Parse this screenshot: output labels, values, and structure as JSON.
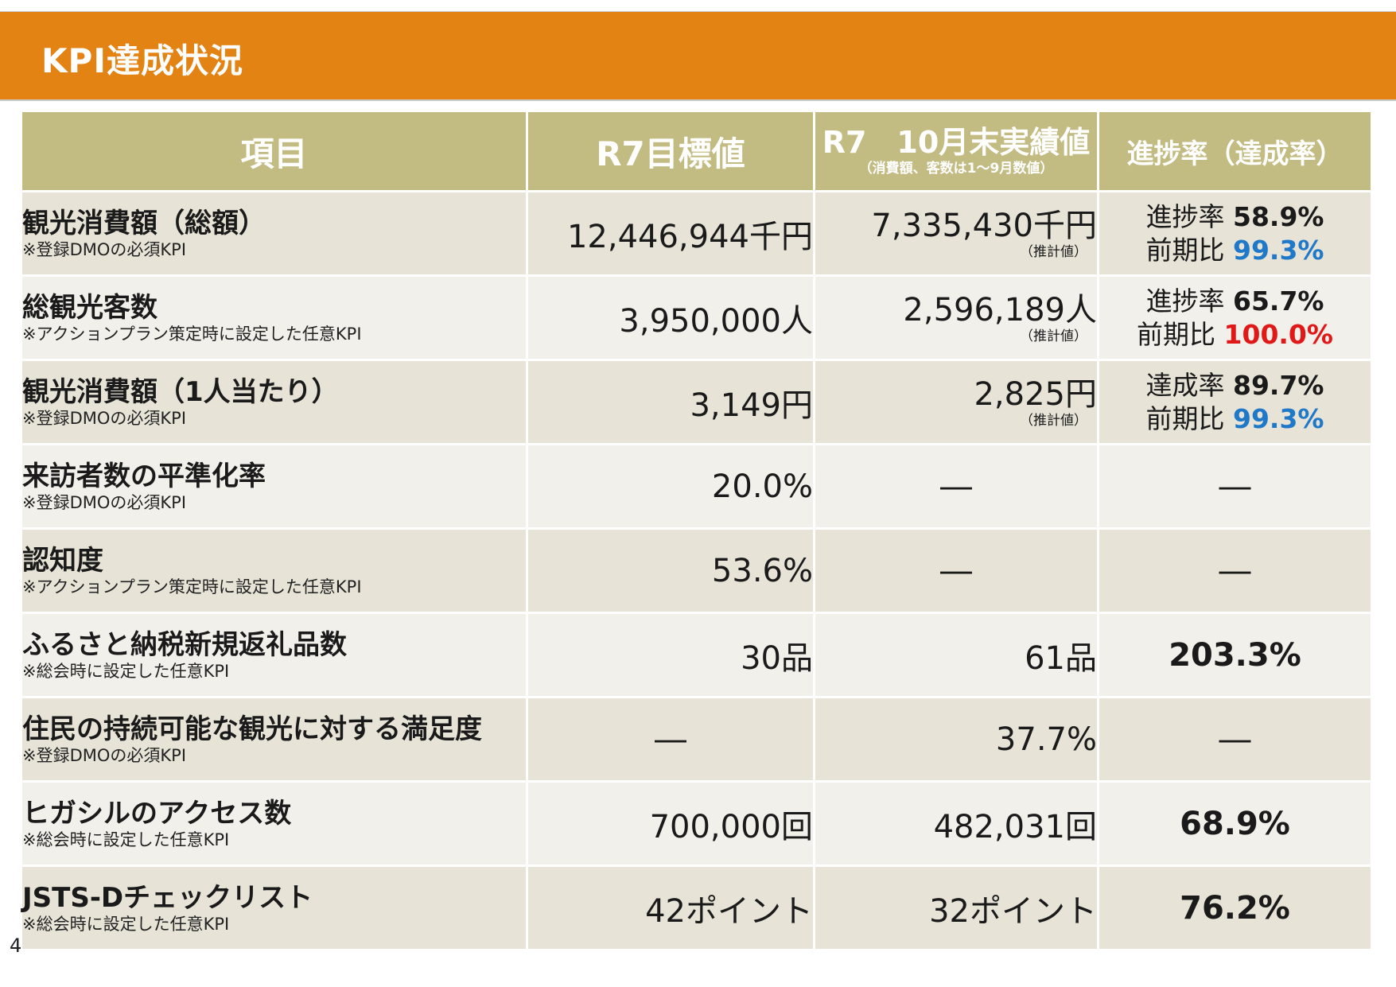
{
  "title": "KPI達成状況",
  "headers": {
    "item": "項目",
    "target": "R7目標値",
    "actual": "R7　10月末実績値",
    "actual_note": "（消費額、客数は1～9月数値）",
    "progress": "進捗率（達成率）"
  },
  "rows": [
    {
      "name": "観光消費額（総額）",
      "note": "※登録DMOの必須KPI",
      "target": "12,446,944千円",
      "actual": "7,335,430千円",
      "actual_note": "（推計値）",
      "progress_label1": "進捗率",
      "progress_value1": "58.9%",
      "progress_label2": "前期比",
      "progress_value2": "99.3%",
      "progress_color2": "#1f78c8"
    },
    {
      "name": "総観光客数",
      "note": "※アクションプラン策定時に設定した任意KPI",
      "target": "3,950,000人",
      "actual": "2,596,189人",
      "actual_note": "（推計値）",
      "progress_label1": "進捗率",
      "progress_value1": "65.7%",
      "progress_label2": "前期比",
      "progress_value2": "100.0%",
      "progress_color2": "#e01818"
    },
    {
      "name": "観光消費額（1人当たり）",
      "note": "※登録DMOの必須KPI",
      "target": "3,149円",
      "actual": "2,825円",
      "actual_note": "（推計値）",
      "progress_label1": "達成率",
      "progress_value1": "89.7%",
      "progress_label2": "前期比",
      "progress_value2": "99.3%",
      "progress_color2": "#1f78c8"
    },
    {
      "name": "来訪者数の平準化率",
      "note": "※登録DMOの必須KPI",
      "target": "20.0%",
      "actual": "―",
      "progress": "―"
    },
    {
      "name": "認知度",
      "note": "※アクションプラン策定時に設定した任意KPI",
      "target": "53.6%",
      "actual": "―",
      "progress": "―"
    },
    {
      "name": "ふるさと納税新規返礼品数",
      "note": "※総会時に設定した任意KPI",
      "target": "30品",
      "actual": "61品",
      "progress": "203.3%"
    },
    {
      "name": "住民の持続可能な観光に対する満足度",
      "note": "※登録DMOの必須KPI",
      "target": "―",
      "actual": "37.7%",
      "progress": "―"
    },
    {
      "name": "ヒガシルのアクセス数",
      "note": "※総会時に設定した任意KPI",
      "target": "700,000回",
      "actual": "482,031回",
      "progress": "68.9%"
    },
    {
      "name": "JSTS-Dチェックリスト",
      "note": "※総会時に設定した任意KPI",
      "target": "42ポイント",
      "actual": "32ポイント",
      "progress": "76.2%"
    }
  ],
  "page_number": "4"
}
